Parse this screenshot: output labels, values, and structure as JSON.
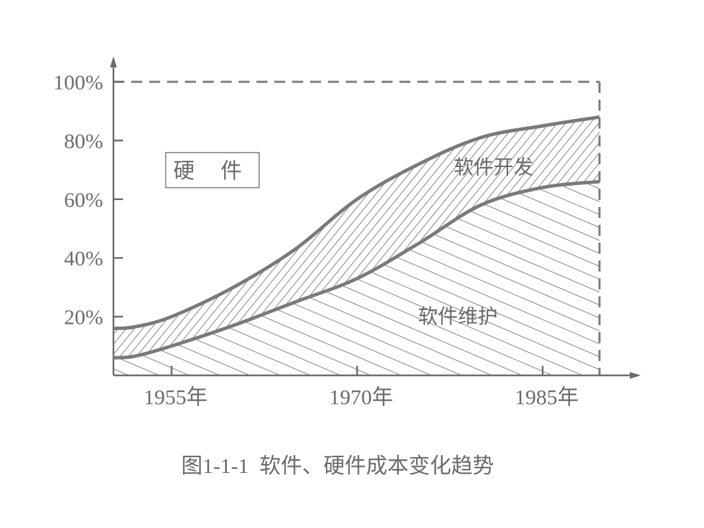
{
  "chart_data": {
    "type": "area",
    "title": "",
    "caption": "图1-1-1  软件、硬件成本变化趋势",
    "x_ticks": [
      "1955年",
      "1970年",
      "1985年"
    ],
    "x_tick_values": [
      1955,
      1970,
      1985
    ],
    "x_range": [
      1950.3,
      1989.6
    ],
    "y_ticks": [
      "20%",
      "40%",
      "60%",
      "80%",
      "100%"
    ],
    "y_tick_values": [
      20,
      40,
      60,
      80,
      100
    ],
    "y_range": [
      0,
      100
    ],
    "upper_boundary_line": true,
    "right_boundary_line": true,
    "series": [
      {
        "name": "软件维护",
        "x": [
          1950.3,
          1952,
          1955,
          1960,
          1965,
          1970,
          1975,
          1980,
          1985,
          1989.6
        ],
        "values": [
          6,
          6.5,
          10,
          17,
          25,
          33,
          45,
          58,
          64,
          66
        ]
      },
      {
        "name": "软件开发",
        "x": [
          1950.3,
          1952,
          1955,
          1960,
          1965,
          1970,
          1975,
          1980,
          1985,
          1989.6
        ],
        "values": [
          16,
          16.5,
          20,
          30,
          43,
          60,
          72,
          81,
          85,
          88
        ]
      }
    ],
    "region_labels": {
      "hardware": "硬 件",
      "development": "软件开发",
      "maintenance": "软件维护"
    },
    "colors": {
      "curve": "#7a7a7a",
      "axis": "#6b6b6b",
      "hatch": "#808080",
      "text": "#6b6b6b"
    }
  }
}
